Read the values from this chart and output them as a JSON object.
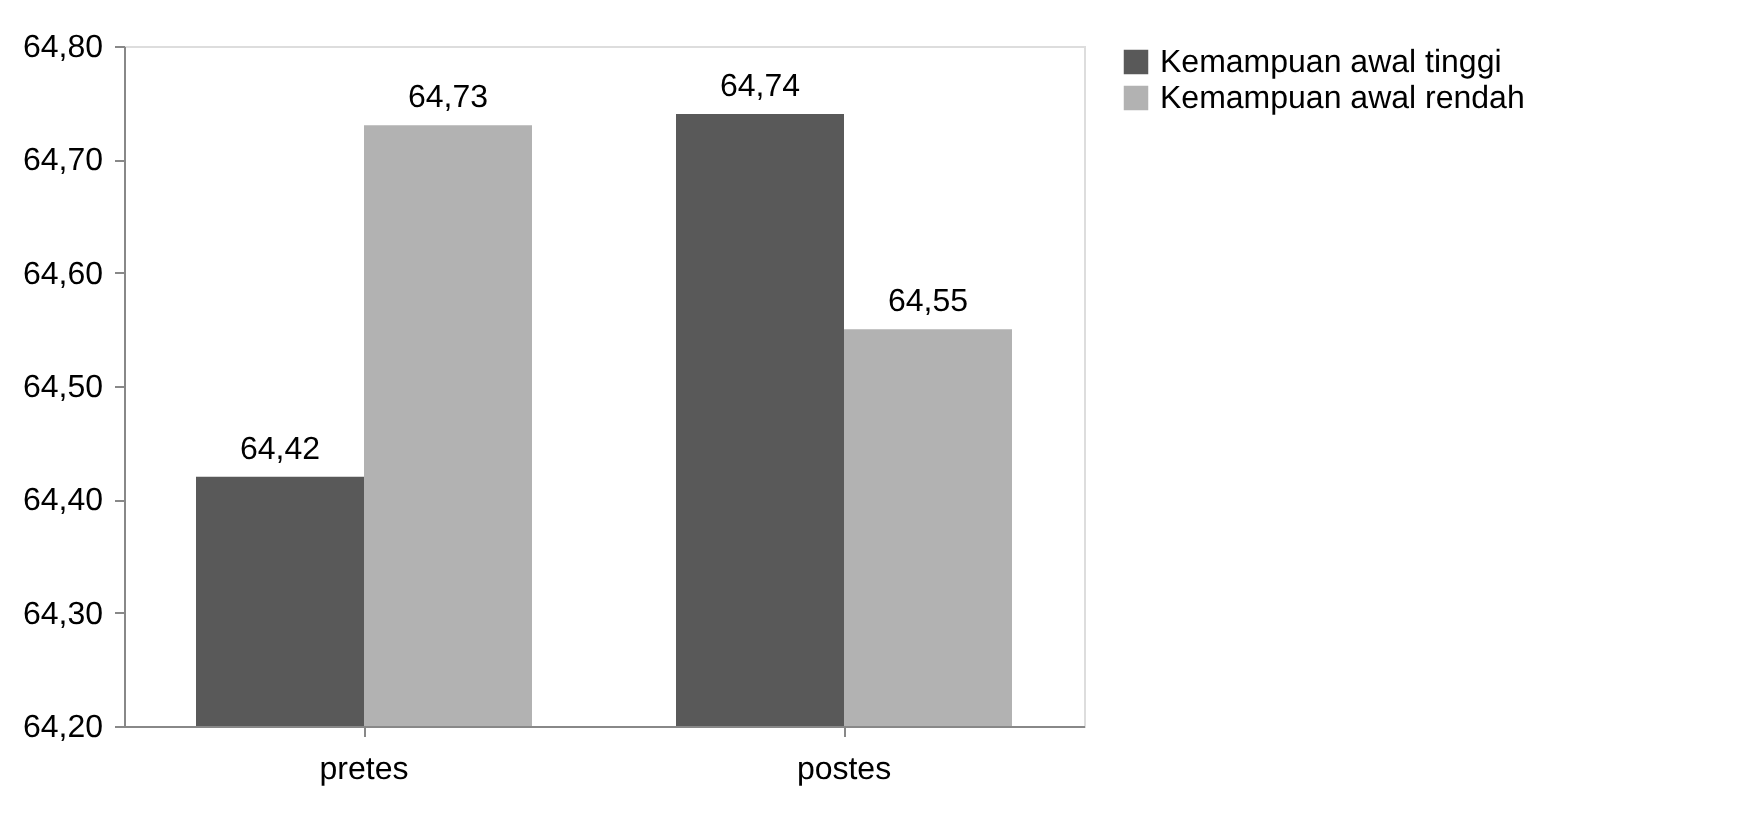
{
  "chart_data": {
    "type": "bar",
    "categories": [
      "pretes",
      "postes"
    ],
    "series": [
      {
        "name": "Kemampuan awal tinggi",
        "color": "#595959",
        "values": [
          64.42,
          64.74
        ],
        "value_labels": [
          "64,42",
          "64,74"
        ]
      },
      {
        "name": "Kemampuan awal rendah",
        "color": "#b2b2b2",
        "values": [
          64.73,
          64.55
        ],
        "value_labels": [
          "64,73",
          "64,55"
        ]
      }
    ],
    "ylim": [
      64.2,
      64.8
    ],
    "yticks": [
      {
        "value": 64.2,
        "label": "64,20"
      },
      {
        "value": 64.3,
        "label": "64,30"
      },
      {
        "value": 64.4,
        "label": "64,40"
      },
      {
        "value": 64.5,
        "label": "64,50"
      },
      {
        "value": 64.6,
        "label": "64,60"
      },
      {
        "value": 64.7,
        "label": "64,70"
      },
      {
        "value": 64.8,
        "label": "64,80"
      }
    ],
    "legend": "right",
    "grid": false
  }
}
